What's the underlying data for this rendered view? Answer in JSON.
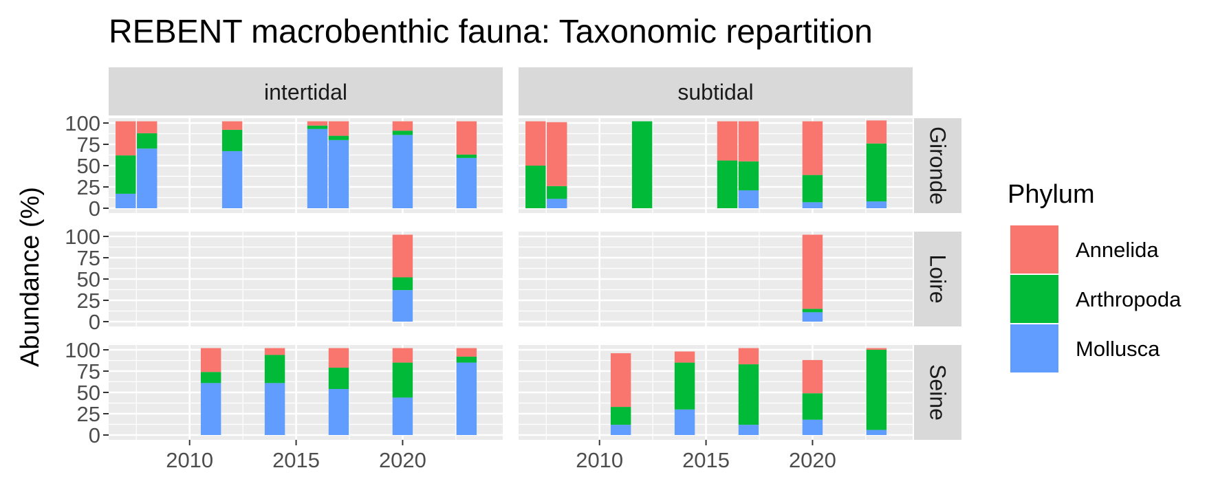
{
  "chart_data": {
    "type": "bar",
    "title": "REBENT macrobenthic fauna: Taxonomic repartition",
    "xlabel": "",
    "ylabel": "Abundance (%)",
    "ylim": [
      0,
      100
    ],
    "yticks": [
      "0",
      "25",
      "50",
      "75",
      "100"
    ],
    "xticks": [
      "2010",
      "2015",
      "2020"
    ],
    "xlim": [
      2006.2,
      2024.7
    ],
    "stacked": true,
    "grid": true,
    "legend": {
      "title": "Phylum",
      "position": "right",
      "items": [
        {
          "name": "Annelida",
          "color": "#F8766D"
        },
        {
          "name": "Arthropoda",
          "color": "#00BA38"
        },
        {
          "name": "Mollusca",
          "color": "#619CFF"
        }
      ]
    },
    "column_facets": [
      "intertidal",
      "subtidal"
    ],
    "row_facets": [
      "Gironde",
      "Loire",
      "Seine"
    ],
    "series_order": [
      "Mollusca",
      "Arthropoda",
      "Annelida"
    ],
    "panels": [
      {
        "row": "Gironde",
        "col": "intertidal",
        "bars": [
          {
            "year": 2007,
            "Mollusca": 17,
            "Arthropoda": 45,
            "Annelida": 40
          },
          {
            "year": 2008,
            "Mollusca": 70,
            "Arthropoda": 18,
            "Annelida": 14
          },
          {
            "year": 2012,
            "Mollusca": 67,
            "Arthropoda": 25,
            "Annelida": 10
          },
          {
            "year": 2016,
            "Mollusca": 93,
            "Arthropoda": 4,
            "Annelida": 5
          },
          {
            "year": 2017,
            "Mollusca": 80,
            "Arthropoda": 5,
            "Annelida": 17
          },
          {
            "year": 2020,
            "Mollusca": 86,
            "Arthropoda": 5,
            "Annelida": 11
          },
          {
            "year": 2023,
            "Mollusca": 59,
            "Arthropoda": 4,
            "Annelida": 39
          }
        ]
      },
      {
        "row": "Gironde",
        "col": "subtidal",
        "bars": [
          {
            "year": 2007,
            "Mollusca": 0,
            "Arthropoda": 50,
            "Annelida": 52
          },
          {
            "year": 2008,
            "Mollusca": 11,
            "Arthropoda": 15,
            "Annelida": 75
          },
          {
            "year": 2012,
            "Mollusca": 0,
            "Arthropoda": 102,
            "Annelida": 0
          },
          {
            "year": 2016,
            "Mollusca": 0,
            "Arthropoda": 56,
            "Annelida": 46
          },
          {
            "year": 2017,
            "Mollusca": 21,
            "Arthropoda": 34,
            "Annelida": 47
          },
          {
            "year": 2020,
            "Mollusca": 7,
            "Arthropoda": 32,
            "Annelida": 63
          },
          {
            "year": 2023,
            "Mollusca": 8,
            "Arthropoda": 68,
            "Annelida": 27
          }
        ]
      },
      {
        "row": "Loire",
        "col": "intertidal",
        "bars": [
          {
            "year": 2020,
            "Mollusca": 37,
            "Arthropoda": 15,
            "Annelida": 50
          }
        ]
      },
      {
        "row": "Loire",
        "col": "subtidal",
        "bars": [
          {
            "year": 2020,
            "Mollusca": 11,
            "Arthropoda": 4,
            "Annelida": 87
          }
        ]
      },
      {
        "row": "Seine",
        "col": "intertidal",
        "bars": [
          {
            "year": 2011,
            "Mollusca": 61,
            "Arthropoda": 13,
            "Annelida": 28
          },
          {
            "year": 2014,
            "Mollusca": 61,
            "Arthropoda": 33,
            "Annelida": 8
          },
          {
            "year": 2017,
            "Mollusca": 54,
            "Arthropoda": 25,
            "Annelida": 23
          },
          {
            "year": 2020,
            "Mollusca": 44,
            "Arthropoda": 41,
            "Annelida": 17
          },
          {
            "year": 2023,
            "Mollusca": 85,
            "Arthropoda": 7,
            "Annelida": 10
          }
        ]
      },
      {
        "row": "Seine",
        "col": "subtidal",
        "bars": [
          {
            "year": 2011,
            "Mollusca": 12,
            "Arthropoda": 21,
            "Annelida": 63
          },
          {
            "year": 2014,
            "Mollusca": 30,
            "Arthropoda": 55,
            "Annelida": 13
          },
          {
            "year": 2017,
            "Mollusca": 12,
            "Arthropoda": 71,
            "Annelida": 19
          },
          {
            "year": 2020,
            "Mollusca": 18,
            "Arthropoda": 31,
            "Annelida": 39
          },
          {
            "year": 2023,
            "Mollusca": 6,
            "Arthropoda": 94,
            "Annelida": 2
          }
        ]
      }
    ]
  },
  "colors": {
    "panel_background": "#EBEBEB",
    "strip_background": "#D9D9D9",
    "grid": "#FFFFFF",
    "tick_text": "#4D4D4D",
    "text": "#1A1A1A"
  }
}
